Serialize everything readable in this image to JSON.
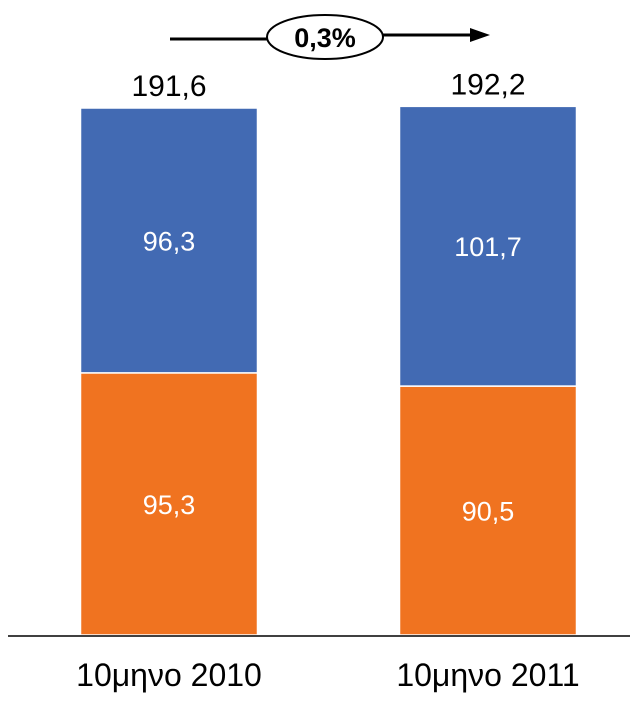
{
  "chart_data": {
    "type": "bar",
    "stacked": true,
    "categories": [
      "10μηνο 2010",
      "10μηνο 2011"
    ],
    "series": [
      {
        "values": [
          95.3,
          90.5
        ],
        "color": "#F07320"
      },
      {
        "values": [
          96.3,
          101.7
        ],
        "color": "#426AB3"
      }
    ],
    "series_labels": [
      [
        "95,3",
        "90,5"
      ],
      [
        "96,3",
        "101,7"
      ]
    ],
    "totals": [
      191.6,
      192.2
    ],
    "total_labels": [
      "191,6",
      "192,2"
    ],
    "annotation": {
      "text": "0,3%",
      "arrow": "left-to-right"
    },
    "ylim": [
      0,
      200
    ],
    "grid": false,
    "legend": "none"
  }
}
